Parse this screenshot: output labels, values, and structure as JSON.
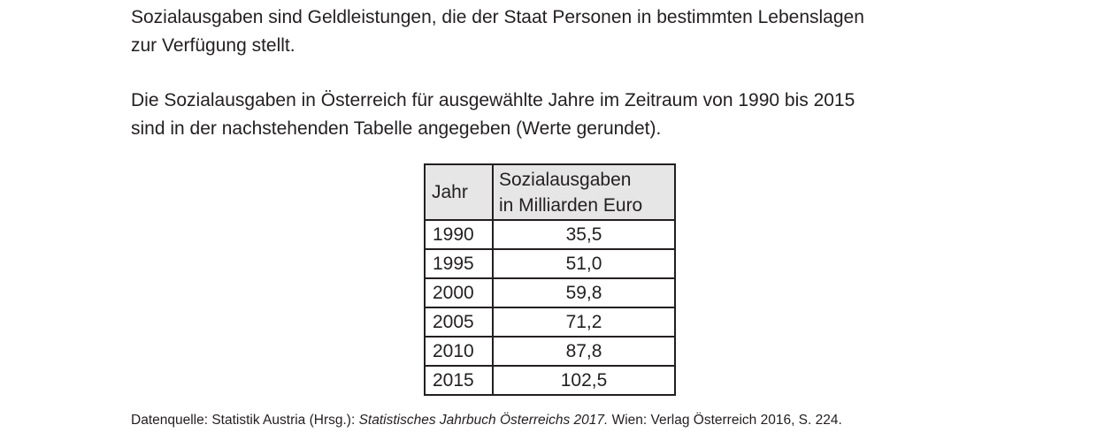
{
  "intro": {
    "line1": "Sozialausgaben sind Geldleistungen, die der Staat Personen in bestimmten Lebenslagen",
    "line2": "zur Verfügung stellt."
  },
  "description": {
    "line1": "Die Sozialausgaben in Österreich für ausgewählte Jahre im Zeitraum von 1990 bis 2015",
    "line2": "sind in der nachstehenden Tabelle angegeben (Werte gerundet)."
  },
  "table": {
    "header_year": "Jahr",
    "header_value_line1": "Sozialausgaben",
    "header_value_line2": "in Milliarden Euro",
    "rows": [
      {
        "year": "1990",
        "value": "35,5"
      },
      {
        "year": "1995",
        "value": "51,0"
      },
      {
        "year": "2000",
        "value": "59,8"
      },
      {
        "year": "2005",
        "value": "71,2"
      },
      {
        "year": "2010",
        "value": "87,8"
      },
      {
        "year": "2015",
        "value": "102,5"
      }
    ]
  },
  "source": {
    "prefix": "Datenquelle: Statistik Austria (Hrsg.): ",
    "title": "Statistisches Jahrbuch Österreichs 2017.",
    "suffix": " Wien: Verlag Österreich 2016, S. 224."
  }
}
